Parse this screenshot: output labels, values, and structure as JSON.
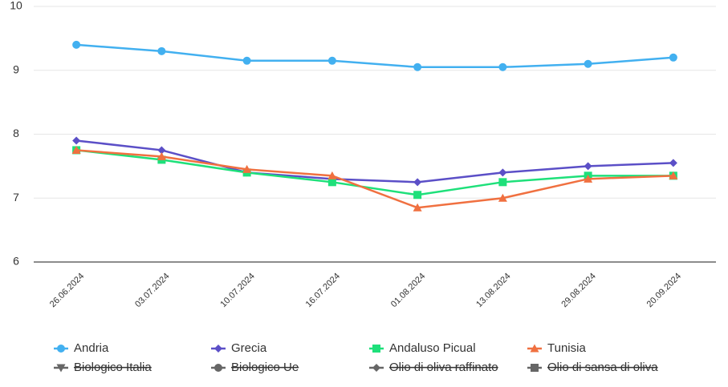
{
  "chart_data": {
    "type": "line",
    "categories": [
      "26.06.2024",
      "03.07.2024",
      "10.07.2024",
      "16.07.2024",
      "01.08.2024",
      "13.08.2024",
      "29.08.2024",
      "20.09.2024"
    ],
    "series": [
      {
        "name": "Andria",
        "color": "#42b0f0",
        "marker": "circle",
        "values": [
          9.4,
          9.3,
          9.15,
          9.15,
          9.05,
          9.05,
          9.1,
          9.2
        ]
      },
      {
        "name": "Grecia",
        "color": "#5b4fc7",
        "marker": "diamond",
        "values": [
          7.9,
          7.75,
          7.4,
          7.3,
          7.25,
          7.4,
          7.5,
          7.55
        ]
      },
      {
        "name": "Andaluso Picual",
        "color": "#1ee07a",
        "marker": "square",
        "values": [
          7.75,
          7.6,
          7.4,
          7.25,
          7.05,
          7.25,
          7.35,
          7.35
        ]
      },
      {
        "name": "Tunisia",
        "color": "#f07040",
        "marker": "triangle",
        "values": [
          7.75,
          7.65,
          7.45,
          7.35,
          6.85,
          7.0,
          7.3,
          7.35
        ]
      },
      {
        "name": "Biologico Italia",
        "color": "#666666",
        "marker": "triangle-down",
        "hidden": true,
        "values": [
          null,
          null,
          null,
          null,
          null,
          null,
          null,
          null
        ]
      },
      {
        "name": "Biologico Ue",
        "color": "#666666",
        "marker": "circle",
        "hidden": true,
        "values": [
          null,
          null,
          null,
          null,
          null,
          null,
          null,
          null
        ]
      },
      {
        "name": "Olio di oliva raffinato",
        "color": "#666666",
        "marker": "diamond",
        "hidden": true,
        "values": [
          null,
          null,
          null,
          null,
          null,
          null,
          null,
          null
        ]
      },
      {
        "name": "Olio di sansa di oliva",
        "color": "#666666",
        "marker": "square",
        "hidden": true,
        "values": [
          null,
          null,
          null,
          null,
          null,
          null,
          null,
          null
        ]
      }
    ],
    "ylim": [
      6,
      10
    ],
    "yticks": [
      6,
      7,
      8,
      9,
      10
    ],
    "grid": true
  }
}
